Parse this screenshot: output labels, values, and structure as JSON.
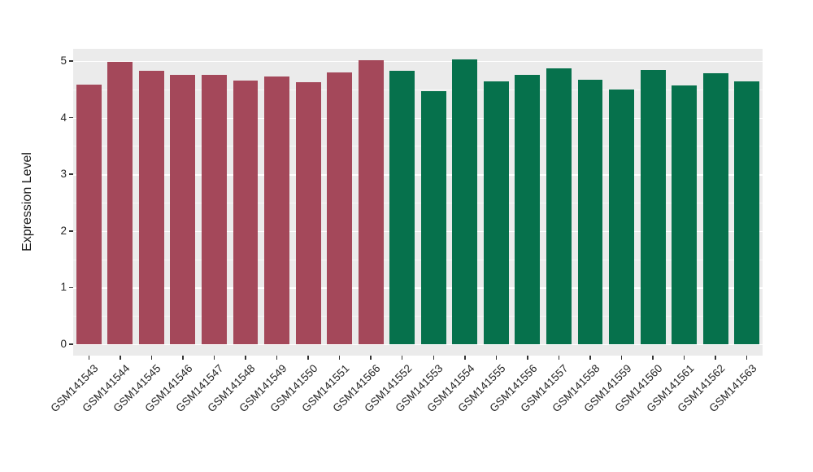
{
  "chart_data": {
    "type": "bar",
    "title": "",
    "xlabel": "",
    "ylabel": "Expression Level",
    "ylim": [
      0,
      5
    ],
    "yticks": [
      0,
      1,
      2,
      3,
      4,
      5
    ],
    "grid": "on",
    "legend": "none",
    "panel_background": "#EBEBEB",
    "grid_color": "#FFFFFF",
    "categories": [
      "GSM141543",
      "GSM141544",
      "GSM141545",
      "GSM141546",
      "GSM141547",
      "GSM141548",
      "GSM141549",
      "GSM141550",
      "GSM141551",
      "GSM141566",
      "GSM141552",
      "GSM141553",
      "GSM141554",
      "GSM141555",
      "GSM141556",
      "GSM141557",
      "GSM141558",
      "GSM141559",
      "GSM141560",
      "GSM141561",
      "GSM141562",
      "GSM141563"
    ],
    "values": [
      4.59,
      4.98,
      4.83,
      4.76,
      4.75,
      4.66,
      4.72,
      4.63,
      4.8,
      5.02,
      4.83,
      4.47,
      5.03,
      4.64,
      4.76,
      4.87,
      4.67,
      4.49,
      4.84,
      4.57,
      4.78,
      4.64
    ],
    "groups": [
      "maroon",
      "maroon",
      "maroon",
      "maroon",
      "maroon",
      "maroon",
      "maroon",
      "maroon",
      "maroon",
      "maroon",
      "green",
      "green",
      "green",
      "green",
      "green",
      "green",
      "green",
      "green",
      "green",
      "green",
      "green",
      "green"
    ],
    "group_colors": {
      "maroon": "#A4485A",
      "green": "#06714C"
    }
  }
}
